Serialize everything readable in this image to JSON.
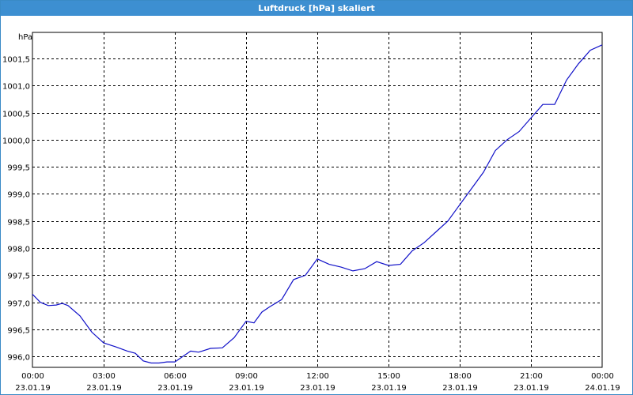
{
  "window": {
    "title": "Luftdruck [hPa] skaliert"
  },
  "colors": {
    "titlebar": "#3d8fd1",
    "series": "#1010c8",
    "grid": "#000000"
  },
  "chart_data": {
    "type": "line",
    "title": "Luftdruck [hPa] skaliert",
    "ylabel": "hPa",
    "xlabel": "",
    "grid": true,
    "ylim": [
      995.8,
      1001.98
    ],
    "xlim": [
      "23.01.19 00:00",
      "24.01.19 00:00"
    ],
    "y_ticks": [
      {
        "value": 996.0,
        "label": "996,0"
      },
      {
        "value": 996.5,
        "label": "996,5"
      },
      {
        "value": 997.0,
        "label": "997,0"
      },
      {
        "value": 997.5,
        "label": "997,5"
      },
      {
        "value": 998.0,
        "label": "998,0"
      },
      {
        "value": 998.5,
        "label": "998,5"
      },
      {
        "value": 999.0,
        "label": "999,0"
      },
      {
        "value": 999.5,
        "label": "999,5"
      },
      {
        "value": 1000.0,
        "label": "1000,0"
      },
      {
        "value": 1000.5,
        "label": "1000,5"
      },
      {
        "value": 1001.0,
        "label": "1001,0"
      },
      {
        "value": 1001.5,
        "label": "1001,5"
      }
    ],
    "x_ticks": [
      {
        "time": "00:00",
        "date": "23.01.19"
      },
      {
        "time": "03:00",
        "date": "23.01.19"
      },
      {
        "time": "06:00",
        "date": "23.01.19"
      },
      {
        "time": "09:00",
        "date": "23.01.19"
      },
      {
        "time": "12:00",
        "date": "23.01.19"
      },
      {
        "time": "15:00",
        "date": "23.01.19"
      },
      {
        "time": "18:00",
        "date": "23.01.19"
      },
      {
        "time": "21:00",
        "date": "23.01.19"
      },
      {
        "time": "00:00",
        "date": "24.01.19"
      }
    ],
    "series": [
      {
        "x": [
          "23.01.19 00:00",
          "23.01.19 00:20",
          "23.01.19 00:40",
          "23.01.19 01:00",
          "23.01.19 01:15",
          "23.01.19 01:30",
          "23.01.19 02:00",
          "23.01.19 02:30",
          "23.01.19 03:00",
          "23.01.19 03:30",
          "23.01.19 04:00",
          "23.01.19 04:20",
          "23.01.19 04:40",
          "23.01.19 05:00",
          "23.01.19 05:20",
          "23.01.19 05:40",
          "23.01.19 06:00",
          "23.01.19 06:20",
          "23.01.19 06:40",
          "23.01.19 07:00",
          "23.01.19 07:30",
          "23.01.19 08:00",
          "23.01.19 08:30",
          "23.01.19 09:00",
          "23.01.19 09:20",
          "23.01.19 09:40",
          "23.01.19 10:00",
          "23.01.19 10:30",
          "23.01.19 11:00",
          "23.01.19 11:30",
          "23.01.19 12:00",
          "23.01.19 12:30",
          "23.01.19 13:00",
          "23.01.19 13:30",
          "23.01.19 14:00",
          "23.01.19 14:30",
          "23.01.19 15:00",
          "23.01.19 15:30",
          "23.01.19 16:00",
          "23.01.19 16:30",
          "23.01.19 17:00",
          "23.01.19 17:30",
          "23.01.19 18:00",
          "23.01.19 18:30",
          "23.01.19 19:00",
          "23.01.19 19:30",
          "23.01.19 20:00",
          "23.01.19 20:30",
          "23.01.19 21:00",
          "23.01.19 21:30",
          "23.01.19 22:00",
          "23.01.19 22:30",
          "23.01.19 23:00",
          "23.01.19 23:30",
          "24.01.19 00:00"
        ],
        "values": [
          997.15,
          997.0,
          996.94,
          996.95,
          996.98,
          996.94,
          996.75,
          996.45,
          996.25,
          996.18,
          996.1,
          996.06,
          995.92,
          995.88,
          995.88,
          995.9,
          995.9,
          996.0,
          996.1,
          996.08,
          996.15,
          996.16,
          996.35,
          996.65,
          996.62,
          996.82,
          996.92,
          997.05,
          997.42,
          997.5,
          997.8,
          997.7,
          997.65,
          997.58,
          997.62,
          997.75,
          997.68,
          997.7,
          997.95,
          998.1,
          998.3,
          998.5,
          998.8,
          999.1,
          999.4,
          999.8,
          1000.0,
          1000.15,
          1000.4,
          1000.65,
          1000.65,
          1001.1,
          1001.4,
          1001.65,
          1001.75
        ]
      }
    ]
  }
}
